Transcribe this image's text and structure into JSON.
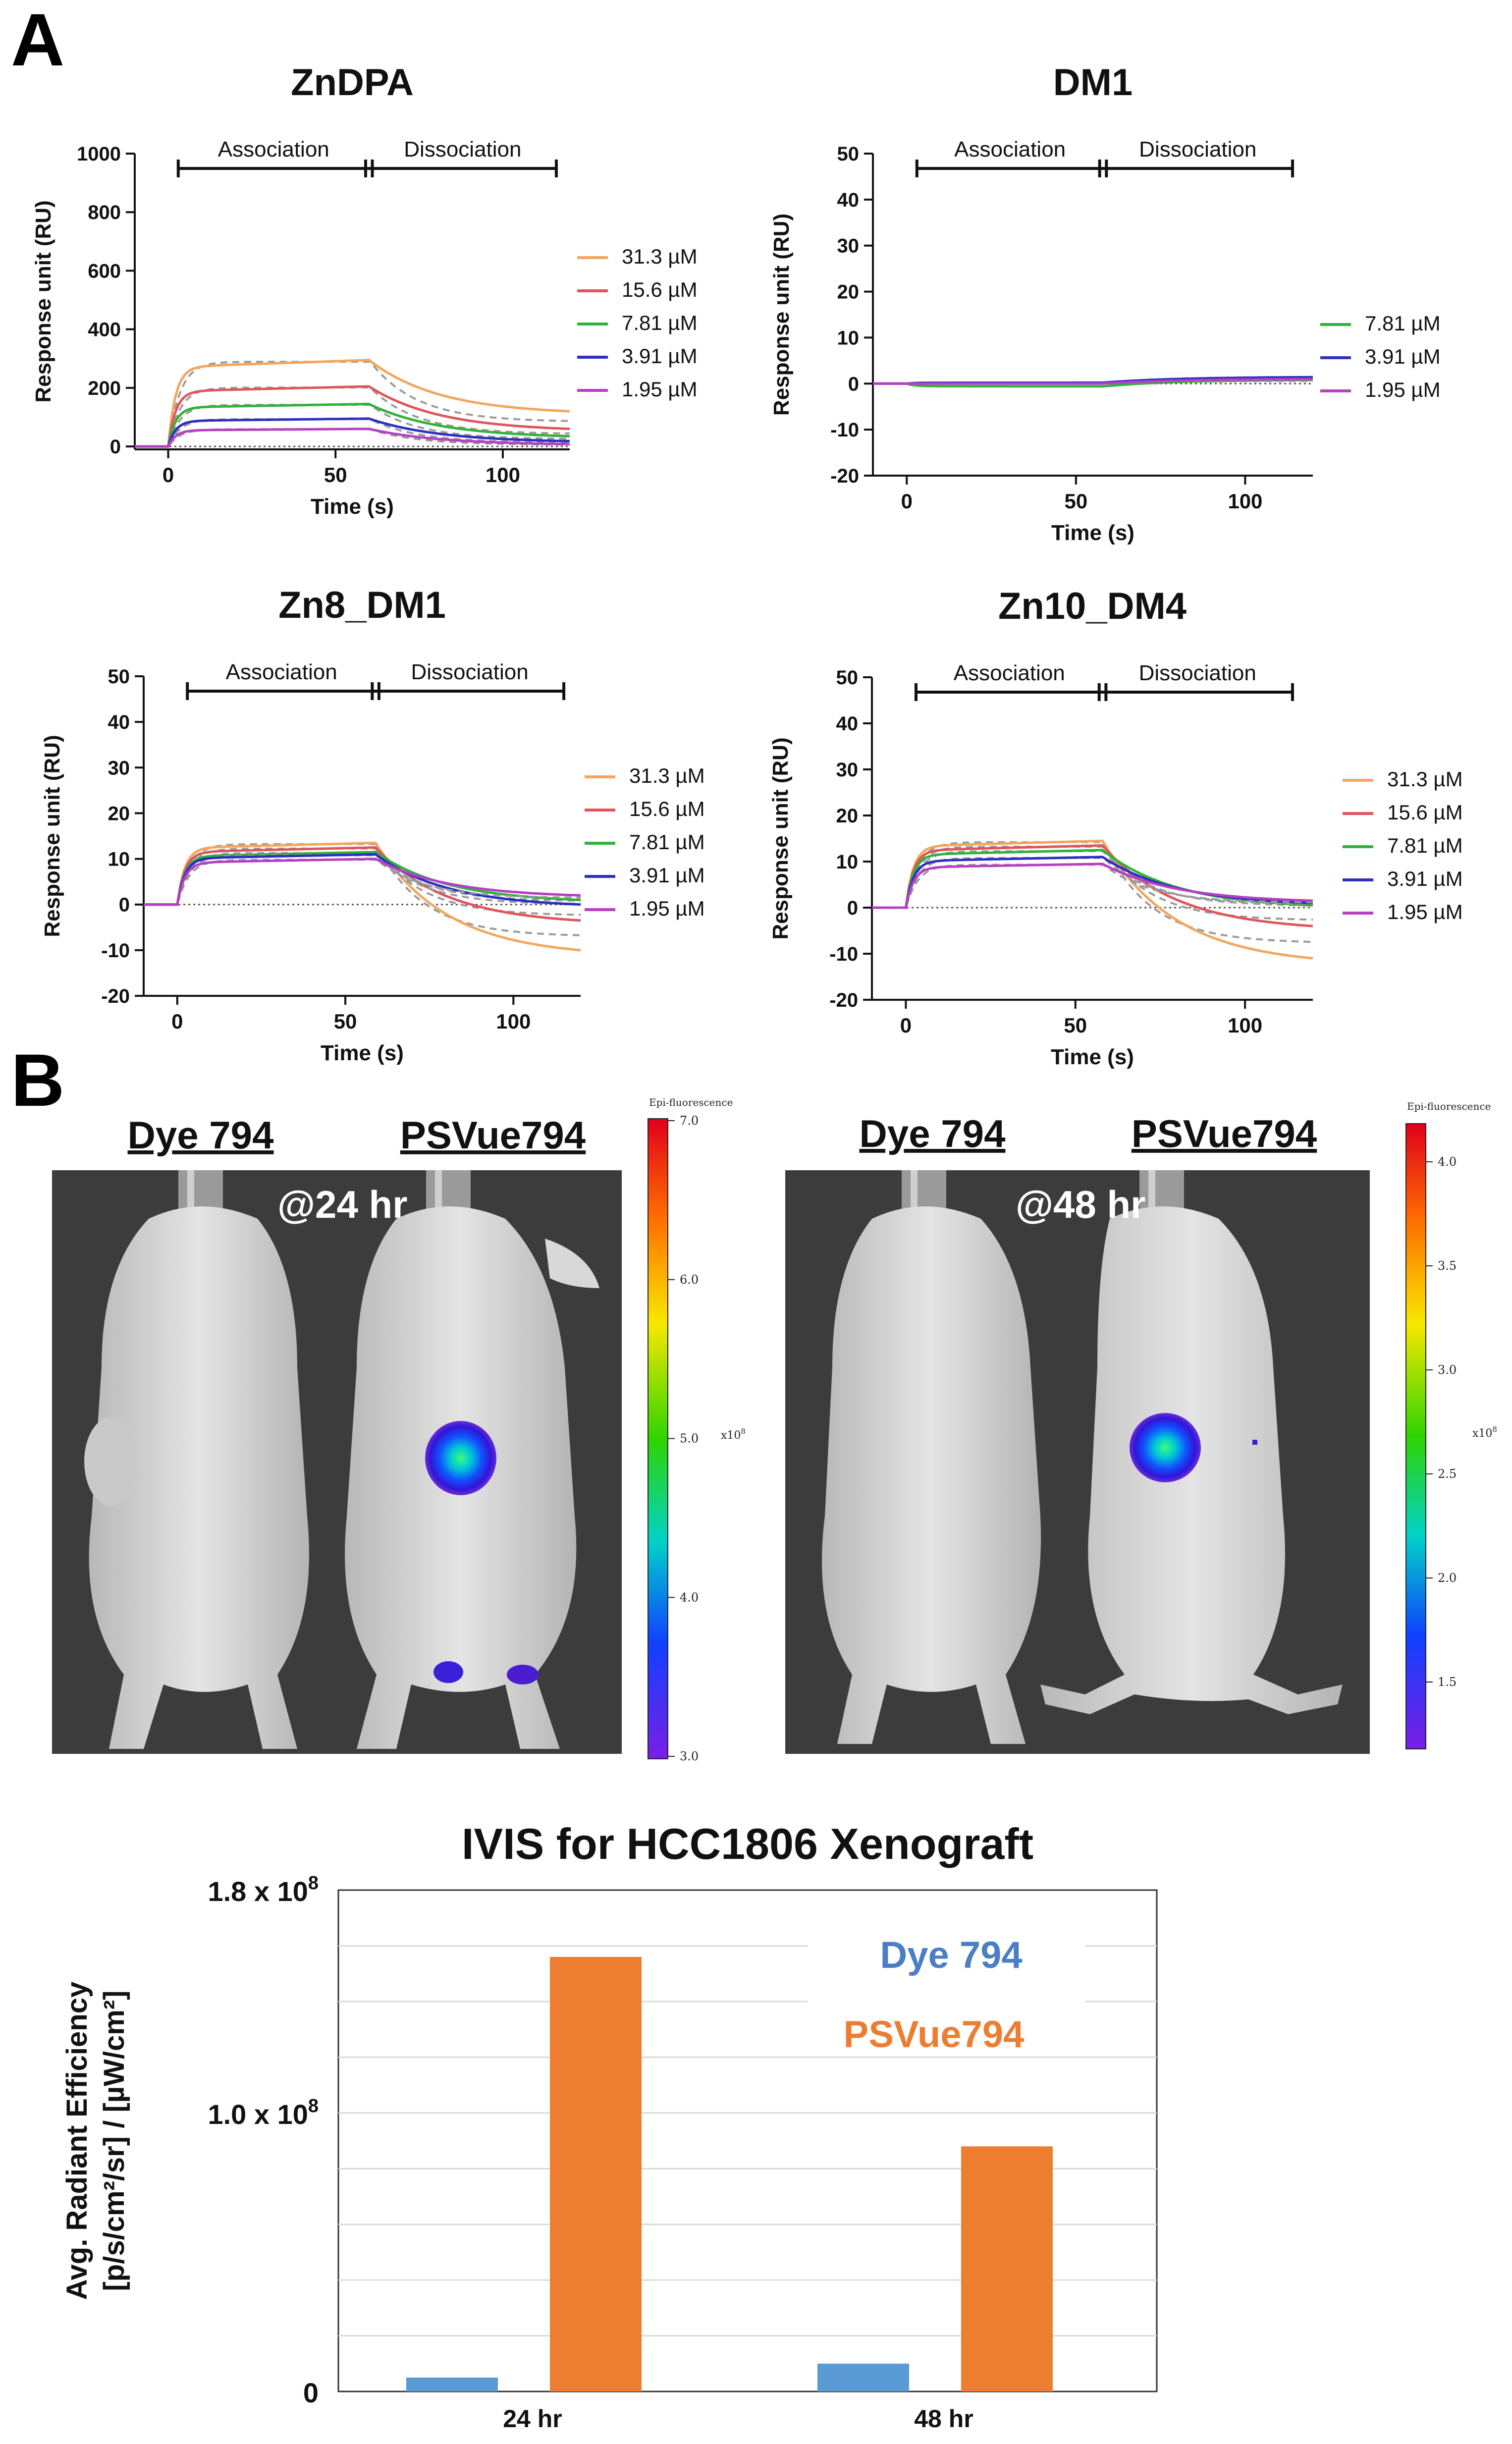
{
  "panel_labels": {
    "a": "A",
    "b": "B"
  },
  "colors": {
    "c31": "#f2a65e",
    "c15": "#e0555c",
    "c7": "#31b23a",
    "c3": "#2d2fc4",
    "c1": "#b63fc4",
    "fit": "#9a9a9a",
    "bar_dye": "#5b9bd5",
    "bar_ps": "#ed7d31",
    "legend_dye": "#4a7fc4",
    "legend_ps": "#ed7d31"
  },
  "chart_data": [
    {
      "type": "line",
      "id": "zndpa",
      "title": "ZnDPA",
      "xlabel": "Time (s)",
      "ylabel": "Response unit (RU)",
      "xlim": [
        -10,
        120
      ],
      "ylim": [
        -10,
        1000
      ],
      "xticks": [
        "0",
        "50",
        "100"
      ],
      "yticks": [
        "0",
        "200",
        "400",
        "600",
        "800",
        "1000"
      ],
      "association_label": "Association",
      "dissociation_label": "Dissociation",
      "phase_bar": {
        "start": 3,
        "split": 60,
        "end": 116
      },
      "series": [
        {
          "name": "31.3 µM",
          "color_key": "c31",
          "plateau": 295,
          "diss_end": 120
        },
        {
          "name": "15.6 µM",
          "color_key": "c15",
          "plateau": 205,
          "diss_end": 60
        },
        {
          "name": "7.81 µM",
          "color_key": "c7",
          "plateau": 145,
          "diss_end": 35
        },
        {
          "name": "3.91 µM",
          "color_key": "c3",
          "plateau": 95,
          "diss_end": 18
        },
        {
          "name": "1.95 µM",
          "color_key": "c1",
          "plateau": 60,
          "diss_end": 8
        }
      ]
    },
    {
      "type": "line",
      "id": "dm1",
      "title": "DM1",
      "xlabel": "Time (s)",
      "ylabel": "Response unit (RU)",
      "xlim": [
        -10,
        120
      ],
      "ylim": [
        -20,
        50
      ],
      "xticks": [
        "0",
        "50",
        "100"
      ],
      "yticks": [
        "-20",
        "-10",
        "0",
        "10",
        "20",
        "30",
        "40",
        "50"
      ],
      "association_label": "Association",
      "dissociation_label": "Dissociation",
      "phase_bar": {
        "start": 3,
        "split": 58,
        "end": 114
      },
      "series": [
        {
          "name": "7.81 µM",
          "color_key": "c7",
          "plateau": -0.6,
          "diss_end": 0.8
        },
        {
          "name": "3.91 µM",
          "color_key": "c3",
          "plateau": 0.2,
          "diss_end": 1.4
        },
        {
          "name": "1.95 µM",
          "color_key": "c1",
          "plateau": 0.0,
          "diss_end": 1.0
        }
      ]
    },
    {
      "type": "line",
      "id": "zn8dm1",
      "title": "Zn8_DM1",
      "xlabel": "Time (s)",
      "ylabel": "Response unit (RU)",
      "xlim": [
        -10,
        120
      ],
      "ylim": [
        -20,
        50
      ],
      "xticks": [
        "0",
        "50",
        "100"
      ],
      "yticks": [
        "-20",
        "-10",
        "0",
        "10",
        "20",
        "30",
        "40",
        "50"
      ],
      "association_label": "Association",
      "dissociation_label": "Dissociation",
      "phase_bar": {
        "start": 3,
        "split": 59,
        "end": 115
      },
      "series": [
        {
          "name": "31.3 µM",
          "color_key": "c31",
          "plateau": 13.5,
          "diss_end": -10
        },
        {
          "name": "15.6 µM",
          "color_key": "c15",
          "plateau": 12.5,
          "diss_end": -3.5
        },
        {
          "name": "7.81 µM",
          "color_key": "c7",
          "plateau": 11.5,
          "diss_end": 1
        },
        {
          "name": "3.91 µM",
          "color_key": "c3",
          "plateau": 11.0,
          "diss_end": 0
        },
        {
          "name": "1.95 µM",
          "color_key": "c1",
          "plateau": 10.0,
          "diss_end": 2
        }
      ]
    },
    {
      "type": "line",
      "id": "zn10dm4",
      "title": "Zn10_DM4",
      "xlabel": "Time (s)",
      "ylabel": "Response unit (RU)",
      "xlim": [
        -10,
        120
      ],
      "ylim": [
        -20,
        50
      ],
      "xticks": [
        "0",
        "50",
        "100"
      ],
      "yticks": [
        "-20",
        "-10",
        "0",
        "10",
        "20",
        "30",
        "40",
        "50"
      ],
      "association_label": "Association",
      "dissociation_label": "Dissociation",
      "phase_bar": {
        "start": 3,
        "split": 58,
        "end": 114
      },
      "series": [
        {
          "name": "31.3 µM",
          "color_key": "c31",
          "plateau": 14.5,
          "diss_end": -11
        },
        {
          "name": "15.6 µM",
          "color_key": "c15",
          "plateau": 13.5,
          "diss_end": -4
        },
        {
          "name": "7.81 µM",
          "color_key": "c7",
          "plateau": 12.5,
          "diss_end": 0.5
        },
        {
          "name": "3.91 µM",
          "color_key": "c3",
          "plateau": 11.0,
          "diss_end": 1
        },
        {
          "name": "1.95 µM",
          "color_key": "c1",
          "plateau": 9.5,
          "diss_end": 1.5
        }
      ]
    },
    {
      "type": "bar",
      "id": "ivis",
      "title": "IVIS for HCC1806 Xenograft",
      "categories": [
        "24 hr",
        "48 hr"
      ],
      "series": [
        {
          "name": "Dye 794",
          "color_key": "bar_dye",
          "values": [
            5000000.0,
            10000000.0
          ]
        },
        {
          "name": "PSVue794",
          "color_key": "bar_ps",
          "values": [
            156000000.0,
            88000000.0
          ]
        }
      ],
      "ylim": [
        0,
        180000000.0
      ],
      "yticks": [
        {
          "base": "0",
          "exp": ""
        },
        {
          "base": "1.0 x 10",
          "exp": "8"
        },
        {
          "base": "1.8 x 10",
          "exp": "8"
        }
      ],
      "ylabel_line1": "Avg. Radiant Efficiency",
      "ylabel_line2": "[p/s/cm²/sr] / [µW/cm²]"
    }
  ],
  "imaging": {
    "panels": [
      {
        "label_left": "Dye 794",
        "label_right": "PSVue794",
        "time": "@24 hr",
        "scale_title": "Epi-fluorescence",
        "scale_ticks": [
          "7.0",
          "6.0",
          "5.0",
          "4.0",
          "3.0"
        ],
        "scale_unit_base": "x10",
        "scale_unit_exp": "8"
      },
      {
        "label_left": "Dye 794",
        "label_right": "PSVue794",
        "time": "@48 hr",
        "scale_title": "Epi-fluorescence",
        "scale_ticks": [
          "4.0",
          "3.5",
          "3.0",
          "2.5",
          "2.0",
          "1.5"
        ],
        "scale_unit_base": "x10",
        "scale_unit_exp": "8"
      }
    ]
  }
}
